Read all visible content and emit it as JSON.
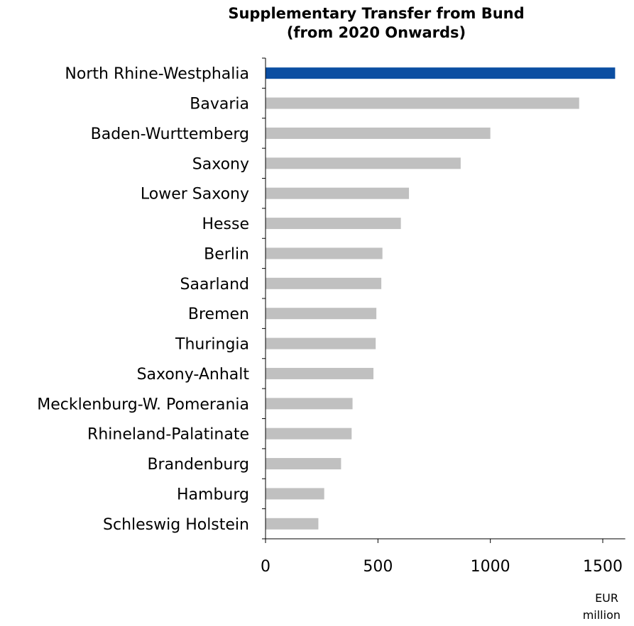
{
  "chart_data": {
    "type": "bar",
    "orientation": "horizontal",
    "title_lines": [
      "Supplementary Transfer from Bund",
      "(from 2020 Onwards)"
    ],
    "categories": [
      "North Rhine-Westphalia",
      "Bavaria",
      "Baden-Wurttemberg",
      "Saxony",
      "Lower Saxony",
      "Hesse",
      "Berlin",
      "Saarland",
      "Bremen",
      "Thuringia",
      "Saxony-Anhalt",
      "Mecklenburg-W. Pomerania",
      "Rhineland-Palatinate",
      "Brandenburg",
      "Hamburg",
      "Schleswig Holstein"
    ],
    "values": [
      1555,
      1395,
      1000,
      868,
      638,
      602,
      520,
      515,
      493,
      490,
      480,
      387,
      383,
      336,
      261,
      235
    ],
    "highlight_color": "#0b4ea2",
    "bar_color": "#c0c0c0",
    "xlim": [
      0,
      1600
    ],
    "xticks": [
      0,
      500,
      1000,
      1500
    ],
    "unit_lines": [
      "EUR",
      "million"
    ],
    "grid": false,
    "legend": "none"
  }
}
